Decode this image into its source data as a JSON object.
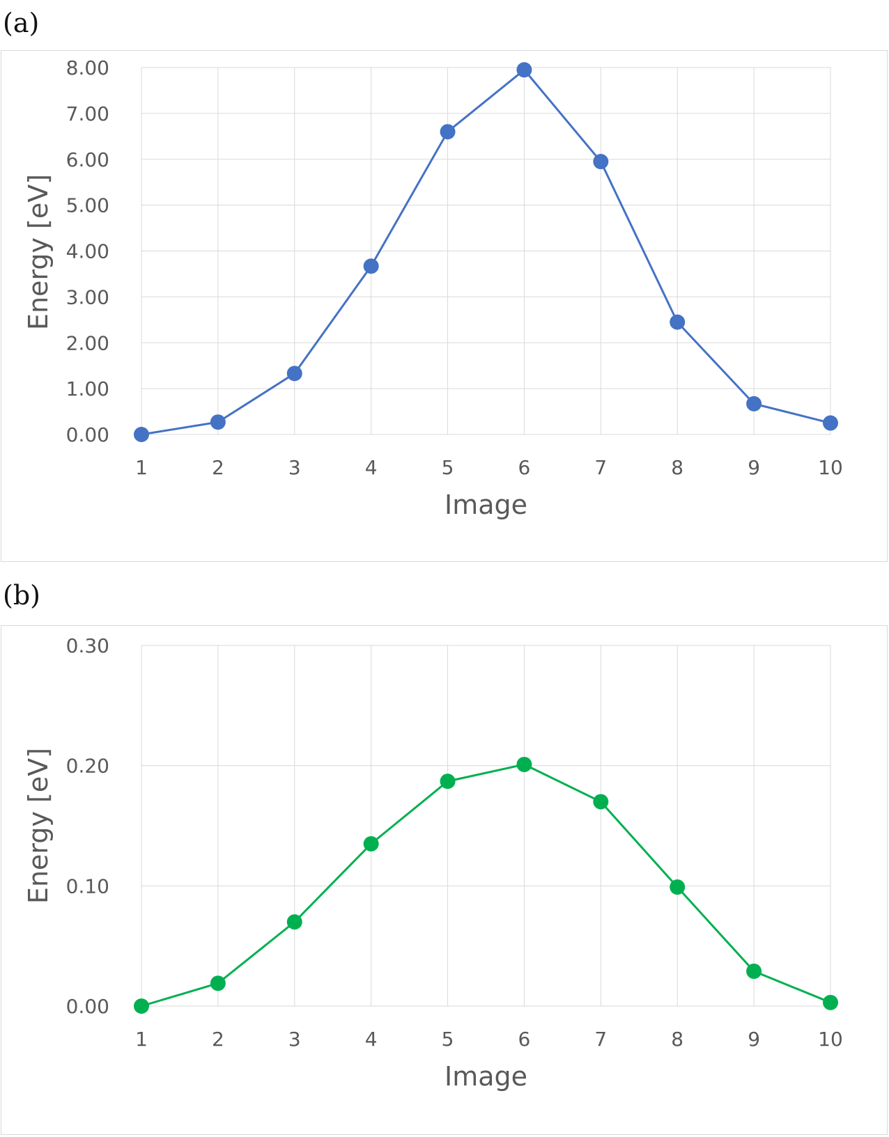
{
  "panels": {
    "a": {
      "label": "(a)"
    },
    "b": {
      "label": "(b)"
    }
  },
  "chart_data": [
    {
      "type": "line",
      "x": [
        1,
        2,
        3,
        4,
        5,
        6,
        7,
        8,
        9,
        10
      ],
      "series": [
        {
          "values": [
            0.0,
            0.27,
            1.33,
            3.67,
            6.6,
            7.95,
            5.95,
            2.45,
            0.67,
            0.25
          ],
          "color": "#4472c4"
        }
      ],
      "xlabel": "Image",
      "ylabel": "Energy [eV]",
      "xlim": [
        1,
        10
      ],
      "ylim": [
        0,
        8
      ],
      "yticks": [
        "0.00",
        "1.00",
        "2.00",
        "3.00",
        "4.00",
        "5.00",
        "6.00",
        "7.00",
        "8.00"
      ],
      "xticks": [
        "1",
        "2",
        "3",
        "4",
        "5",
        "6",
        "7",
        "8",
        "9",
        "10"
      ],
      "grid": true
    },
    {
      "type": "line",
      "x": [
        1,
        2,
        3,
        4,
        5,
        6,
        7,
        8,
        9,
        10
      ],
      "series": [
        {
          "values": [
            0.0,
            0.019,
            0.07,
            0.135,
            0.187,
            0.201,
            0.17,
            0.099,
            0.029,
            0.003
          ],
          "color": "#00b050"
        }
      ],
      "xlabel": "Image",
      "ylabel": "Energy [eV]",
      "xlim": [
        1,
        10
      ],
      "ylim": [
        0,
        0.3
      ],
      "yticks": [
        "0.00",
        "0.10",
        "0.20",
        "0.30"
      ],
      "xticks": [
        "1",
        "2",
        "3",
        "4",
        "5",
        "6",
        "7",
        "8",
        "9",
        "10"
      ],
      "grid": true
    }
  ]
}
